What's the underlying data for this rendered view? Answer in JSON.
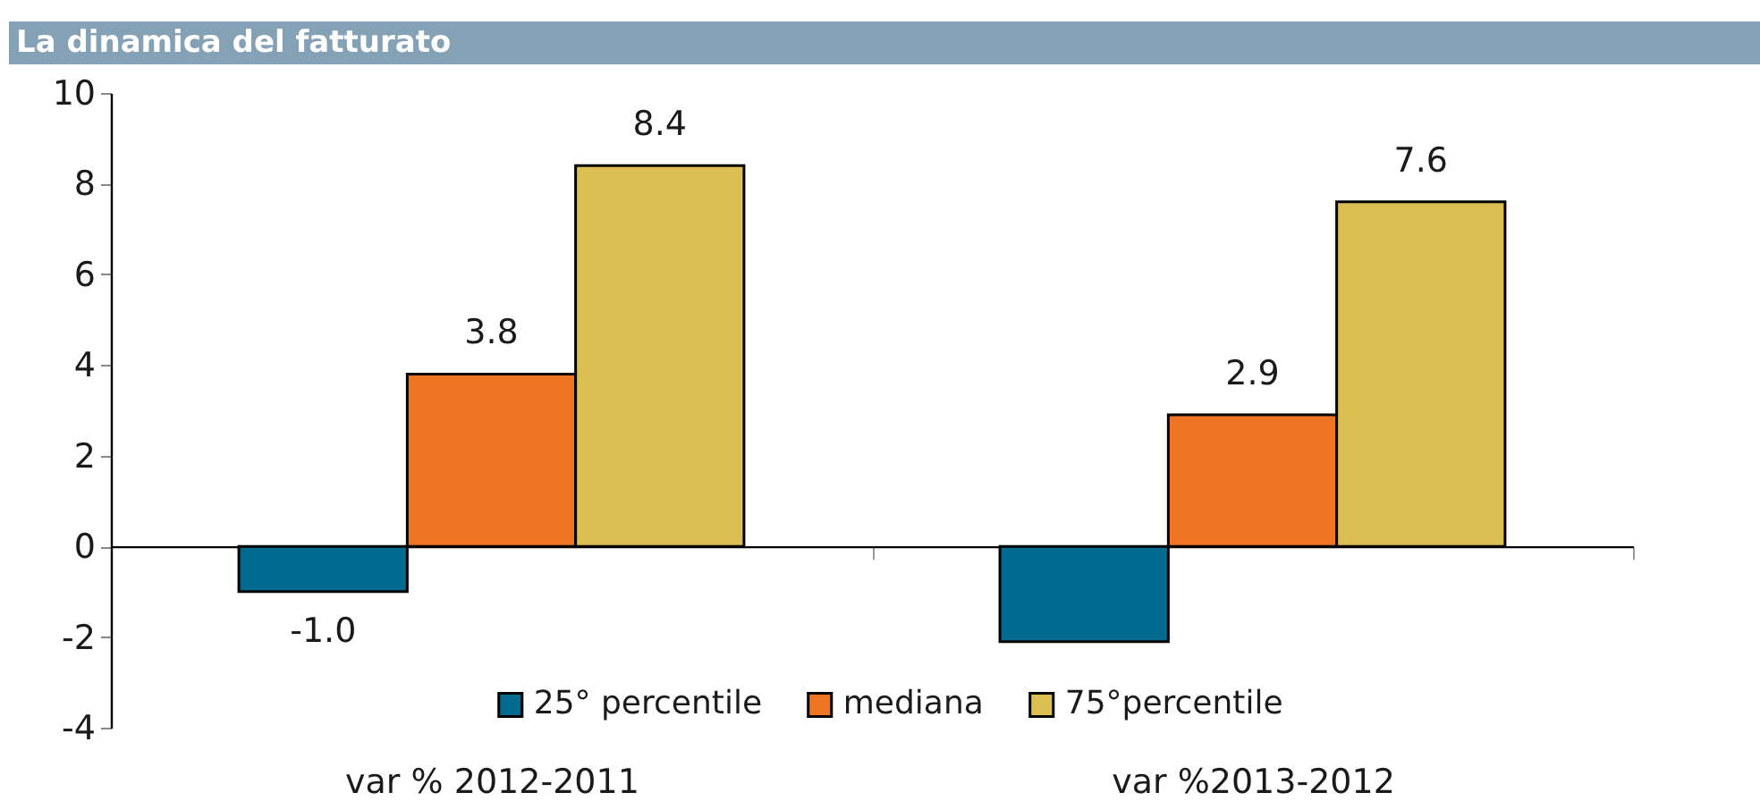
{
  "chart_data": {
    "type": "bar",
    "title": "La dinamica del fatturato",
    "categories": [
      "var % 2012-2011",
      "var %2013-2012"
    ],
    "series": [
      {
        "name": "25° percentile",
        "color": "#006a8f",
        "values": [
          -1.0,
          -2.1
        ],
        "value_labels": [
          "-1.0",
          null
        ]
      },
      {
        "name": "mediana",
        "color": "#ef7524",
        "values": [
          3.8,
          2.9
        ],
        "value_labels": [
          "3.8",
          "2.9"
        ]
      },
      {
        "name": "75°percentile",
        "color": "#dcbf52",
        "values": [
          8.4,
          7.6
        ],
        "value_labels": [
          "8.4",
          "7.6"
        ]
      }
    ],
    "ylim": [
      -4,
      10
    ],
    "yticks": [
      -4,
      -2,
      0,
      2,
      4,
      6,
      8,
      10
    ],
    "legend": "bottom"
  }
}
